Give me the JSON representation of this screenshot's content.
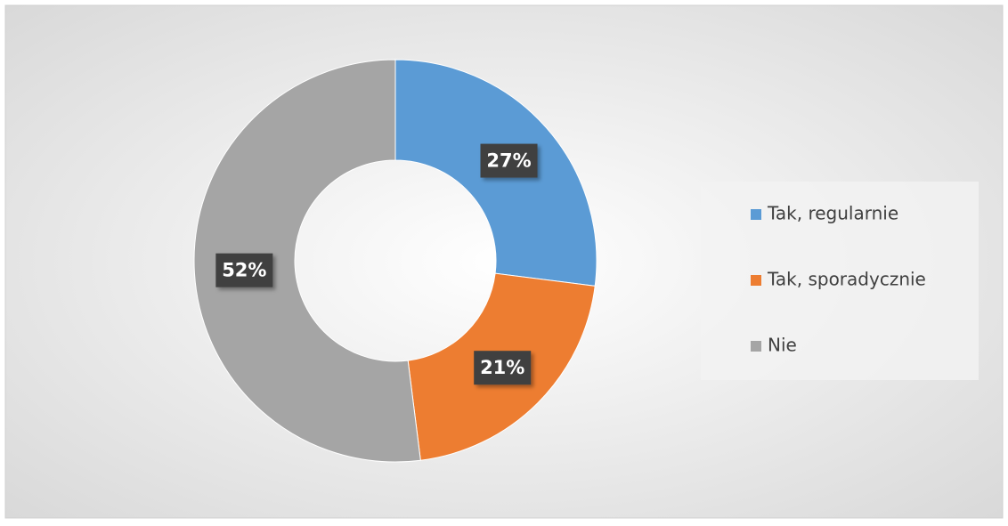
{
  "chart_data": {
    "type": "donut",
    "categories": [
      "Tak, regularnie",
      "Tak, sporadycznie",
      "Nie"
    ],
    "values": [
      27,
      21,
      52
    ],
    "value_labels": [
      "27%",
      "21%",
      "52%"
    ],
    "colors": [
      "#5b9bd5",
      "#ed7d31",
      "#a5a5a5"
    ],
    "legend": "right"
  }
}
